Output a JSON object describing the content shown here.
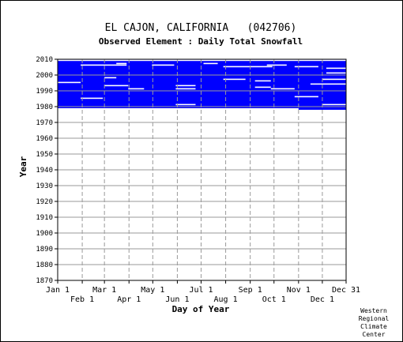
{
  "chart_data": {
    "type": "heatmap",
    "title": "EL CAJON, CALIFORNIA   (042706)",
    "subtitle": "Observed Element : Daily Total Snowfall",
    "xlabel": "Day of Year",
    "ylabel": "Year",
    "x_ticks_top": [
      "Jan 1",
      "Mar 1",
      "May 1",
      "Jul 1",
      "Sep 1",
      "Nov 1",
      "Dec 31"
    ],
    "x_ticks_bottom": [
      "Feb 1",
      "Apr 1",
      "Jun 1",
      "Aug 1",
      "Oct 1",
      "Dec 1"
    ],
    "xlim": [
      1,
      365
    ],
    "y_ticks": [
      2010,
      2000,
      1990,
      1980,
      1970,
      1960,
      1950,
      1940,
      1930,
      1920,
      1910,
      1900,
      1890,
      1880,
      1870
    ],
    "ylim": [
      1870,
      2010
    ],
    "grid": true,
    "colors": {
      "data": "#0000ff",
      "grid": "#9a9a9a",
      "background": "#ffffff"
    },
    "coverage": {
      "first_year_full": 1979,
      "first_year_partial": 1978,
      "partial_start_day": 305,
      "last_year": 2010
    },
    "gaps": [
      {
        "year": 2009,
        "start_day": 1,
        "end_day": 365
      },
      {
        "year": 2007,
        "start_day": 75,
        "end_day": 88
      },
      {
        "year": 2007,
        "start_day": 185,
        "end_day": 203
      },
      {
        "year": 2006,
        "start_day": 30,
        "end_day": 88
      },
      {
        "year": 2006,
        "start_day": 120,
        "end_day": 148
      },
      {
        "year": 2006,
        "start_day": 265,
        "end_day": 290
      },
      {
        "year": 2005,
        "start_day": 210,
        "end_day": 272
      },
      {
        "year": 2005,
        "start_day": 300,
        "end_day": 330
      },
      {
        "year": 2004,
        "start_day": 340,
        "end_day": 365
      },
      {
        "year": 2001,
        "start_day": 340,
        "end_day": 365
      },
      {
        "year": 1998,
        "start_day": 60,
        "end_day": 75
      },
      {
        "year": 1997,
        "start_day": 210,
        "end_day": 238
      },
      {
        "year": 1997,
        "start_day": 335,
        "end_day": 365
      },
      {
        "year": 1996,
        "start_day": 250,
        "end_day": 270
      },
      {
        "year": 1995,
        "start_day": 1,
        "end_day": 30
      },
      {
        "year": 1994,
        "start_day": 320,
        "end_day": 365
      },
      {
        "year": 1993,
        "start_day": 60,
        "end_day": 90
      },
      {
        "year": 1993,
        "start_day": 150,
        "end_day": 175
      },
      {
        "year": 1992,
        "start_day": 250,
        "end_day": 270
      },
      {
        "year": 1991,
        "start_day": 90,
        "end_day": 110
      },
      {
        "year": 1991,
        "start_day": 150,
        "end_day": 175
      },
      {
        "year": 1991,
        "start_day": 270,
        "end_day": 300
      },
      {
        "year": 1986,
        "start_day": 300,
        "end_day": 330
      },
      {
        "year": 1985,
        "start_day": 30,
        "end_day": 58
      },
      {
        "year": 1981,
        "start_day": 150,
        "end_day": 175
      },
      {
        "year": 1981,
        "start_day": 335,
        "end_day": 365
      }
    ]
  },
  "credit": [
    "Western",
    "Regional",
    "Climate",
    "Center"
  ]
}
